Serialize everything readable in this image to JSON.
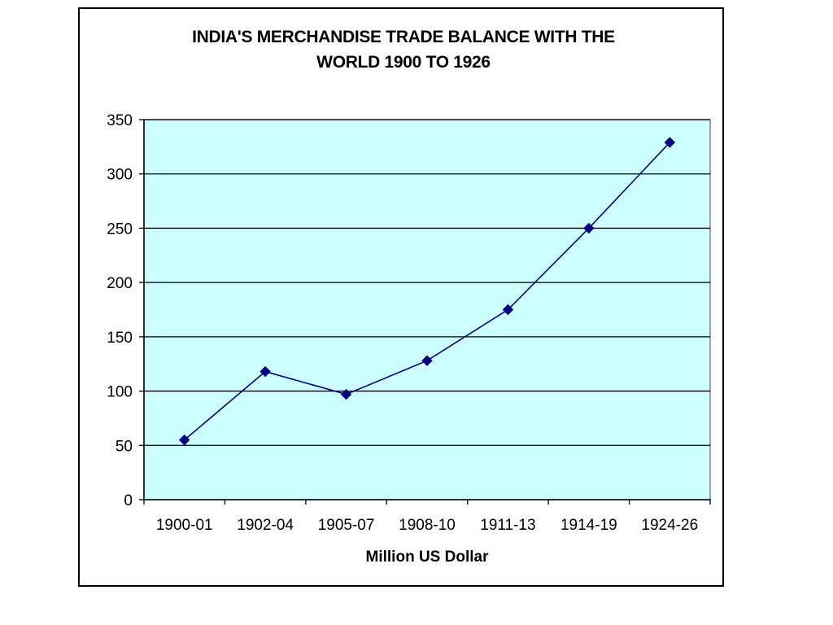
{
  "chart_data": {
    "type": "line",
    "title_lines": [
      "INDIA'S MERCHANDISE TRADE BALANCE WITH THE",
      "WORLD 1900 TO 1926"
    ],
    "xlabel": "Million US Dollar",
    "ylabel": "",
    "categories": [
      "1900-01",
      "1902-04",
      "1905-07",
      "1908-10",
      "1911-13",
      "1914-19",
      "1924-26"
    ],
    "series": [
      {
        "values": [
          55,
          118,
          97,
          128,
          175,
          250,
          329
        ],
        "color": "#000080"
      }
    ],
    "ylim": [
      0,
      350
    ],
    "yticks": [
      0,
      50,
      100,
      150,
      200,
      250,
      300,
      350
    ],
    "grid": true,
    "legend": "none",
    "plot_background": "#ccffff",
    "marker": "diamond"
  }
}
